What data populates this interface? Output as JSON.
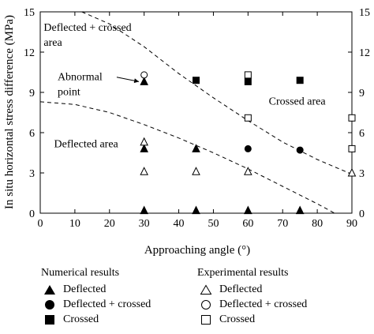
{
  "chart_data": {
    "type": "scatter",
    "xlabel": "Approaching angle (°)",
    "ylabel": "In situ horizontal stress difference (MPa)",
    "xlim": [
      0,
      90
    ],
    "ylim": [
      0,
      15
    ],
    "x_ticks": [
      "0",
      "10",
      "20",
      "30",
      "40",
      "50",
      "60",
      "70",
      "80",
      "90"
    ],
    "y_ticks": [
      "0",
      "3",
      "6",
      "9",
      "12",
      "15"
    ],
    "y_ticks_right": [
      "0",
      "3",
      "6",
      "9",
      "12",
      "15"
    ],
    "grid": false,
    "legend_position": "bottom",
    "legend_groups": [
      {
        "title": "Numerical results",
        "entries": [
          {
            "label": "Deflected",
            "marker": "triangle-filled"
          },
          {
            "label": "Deflected + crossed",
            "marker": "circle-filled"
          },
          {
            "label": "Crossed",
            "marker": "square-filled"
          }
        ]
      },
      {
        "title": "Experimental results",
        "entries": [
          {
            "label": "Deflected",
            "marker": "triangle-open"
          },
          {
            "label": "Deflected + crossed",
            "marker": "circle-open"
          },
          {
            "label": "Crossed",
            "marker": "square-open"
          }
        ]
      }
    ],
    "series": [
      {
        "name": "Numerical results – Deflected",
        "marker": "triangle-filled",
        "points": [
          [
            30,
            0.2
          ],
          [
            45,
            0.2
          ],
          [
            60,
            0.2
          ],
          [
            75,
            0.2
          ],
          [
            30,
            4.8
          ],
          [
            45,
            4.8
          ],
          [
            30,
            9.8
          ]
        ]
      },
      {
        "name": "Numerical results – Deflected + crossed",
        "marker": "circle-filled",
        "points": [
          [
            60,
            4.8
          ],
          [
            75,
            4.7
          ]
        ]
      },
      {
        "name": "Numerical results – Crossed",
        "marker": "square-filled",
        "points": [
          [
            45,
            9.9
          ],
          [
            60,
            9.8
          ],
          [
            75,
            9.9
          ]
        ]
      },
      {
        "name": "Experimental results – Deflected",
        "marker": "triangle-open",
        "points": [
          [
            30,
            3.1
          ],
          [
            45,
            3.1
          ],
          [
            60,
            3.1
          ],
          [
            90,
            3.0
          ],
          [
            30,
            5.3
          ]
        ]
      },
      {
        "name": "Experimental results – Deflected + crossed",
        "marker": "circle-open",
        "points": [
          [
            30,
            10.3
          ]
        ]
      },
      {
        "name": "Experimental results – Crossed",
        "marker": "square-open",
        "points": [
          [
            60,
            10.3
          ],
          [
            60,
            7.1
          ],
          [
            90,
            7.1
          ],
          [
            90,
            4.8
          ]
        ]
      }
    ],
    "boundary_curves": [
      {
        "style": "dashed",
        "points": [
          [
            12,
            15
          ],
          [
            20,
            14.1
          ],
          [
            30,
            12.4
          ],
          [
            40,
            10.4
          ],
          [
            50,
            8.6
          ],
          [
            60,
            6.9
          ],
          [
            70,
            5.3
          ],
          [
            80,
            4.0
          ],
          [
            90,
            2.9
          ]
        ]
      },
      {
        "style": "dashed",
        "points": [
          [
            0,
            8.3
          ],
          [
            10,
            8.1
          ],
          [
            20,
            7.5
          ],
          [
            30,
            6.6
          ],
          [
            40,
            5.6
          ],
          [
            50,
            4.5
          ],
          [
            60,
            3.3
          ],
          [
            70,
            2.0
          ],
          [
            80,
            0.7
          ],
          [
            85,
            0
          ]
        ]
      }
    ],
    "annotations": [
      {
        "text_lines": [
          "Deflected + crossed",
          "area"
        ],
        "x": 1,
        "y": 13.6
      },
      {
        "text_lines": [
          "Abnormal",
          "point"
        ],
        "x": 5,
        "y": 9.9,
        "arrow_to": [
          28.5,
          9.8
        ]
      },
      {
        "text_lines": [
          "Crossed area"
        ],
        "x": 66,
        "y": 8.1
      },
      {
        "text_lines": [
          "Deflected area"
        ],
        "x": 4,
        "y": 4.9
      }
    ]
  }
}
